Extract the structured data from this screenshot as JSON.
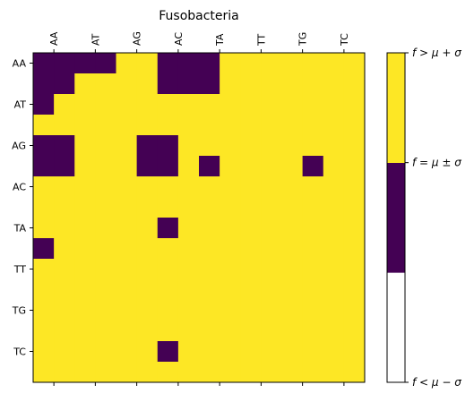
{
  "chart_data": {
    "type": "heatmap",
    "title": "Fusobacteria",
    "xlabel": "",
    "ylabel": "",
    "x_tick_labels": [
      "AA",
      "AT",
      "AG",
      "AC",
      "TA",
      "TT",
      "TG",
      "TC"
    ],
    "y_tick_labels": [
      "AA",
      "AT",
      "AG",
      "AC",
      "TA",
      "TT",
      "TG",
      "TC"
    ],
    "grid": false,
    "legend": "colorbar-right",
    "levels": [
      {
        "code": 0,
        "label": "f < μ − σ",
        "color": "#ffffff"
      },
      {
        "code": 1,
        "label": "f = μ ± σ",
        "color": "#440154"
      },
      {
        "code": 2,
        "label": "f > μ + σ",
        "color": "#fde725"
      }
    ],
    "rows": 16,
    "cols": 16,
    "values": [
      [
        1,
        1,
        1,
        1,
        2,
        2,
        1,
        1,
        1,
        2,
        2,
        2,
        2,
        2,
        2,
        2
      ],
      [
        1,
        1,
        2,
        2,
        2,
        2,
        1,
        1,
        1,
        2,
        2,
        2,
        2,
        2,
        2,
        2
      ],
      [
        1,
        2,
        2,
        2,
        2,
        2,
        2,
        2,
        2,
        2,
        2,
        2,
        2,
        2,
        2,
        2
      ],
      [
        2,
        2,
        2,
        2,
        2,
        2,
        2,
        2,
        2,
        2,
        2,
        2,
        2,
        2,
        2,
        2
      ],
      [
        1,
        1,
        2,
        2,
        2,
        1,
        1,
        2,
        2,
        2,
        2,
        2,
        2,
        2,
        2,
        2
      ],
      [
        1,
        1,
        2,
        2,
        2,
        1,
        1,
        2,
        1,
        2,
        2,
        2,
        2,
        1,
        2,
        2
      ],
      [
        2,
        2,
        2,
        2,
        2,
        2,
        2,
        2,
        2,
        2,
        2,
        2,
        2,
        2,
        2,
        2
      ],
      [
        2,
        2,
        2,
        2,
        2,
        2,
        2,
        2,
        2,
        2,
        2,
        2,
        2,
        2,
        2,
        2
      ],
      [
        2,
        2,
        2,
        2,
        2,
        2,
        1,
        2,
        2,
        2,
        2,
        2,
        2,
        2,
        2,
        2
      ],
      [
        1,
        2,
        2,
        2,
        2,
        2,
        2,
        2,
        2,
        2,
        2,
        2,
        2,
        2,
        2,
        2
      ],
      [
        2,
        2,
        2,
        2,
        2,
        2,
        2,
        2,
        2,
        2,
        2,
        2,
        2,
        2,
        2,
        2
      ],
      [
        2,
        2,
        2,
        2,
        2,
        2,
        2,
        2,
        2,
        2,
        2,
        2,
        2,
        2,
        2,
        2
      ],
      [
        2,
        2,
        2,
        2,
        2,
        2,
        2,
        2,
        2,
        2,
        2,
        2,
        2,
        2,
        2,
        2
      ],
      [
        2,
        2,
        2,
        2,
        2,
        2,
        2,
        2,
        2,
        2,
        2,
        2,
        2,
        2,
        2,
        2
      ],
      [
        2,
        2,
        2,
        2,
        2,
        2,
        1,
        2,
        2,
        2,
        2,
        2,
        2,
        2,
        2,
        2
      ],
      [
        2,
        2,
        2,
        2,
        2,
        2,
        2,
        2,
        2,
        2,
        2,
        2,
        2,
        2,
        2,
        2
      ]
    ]
  }
}
